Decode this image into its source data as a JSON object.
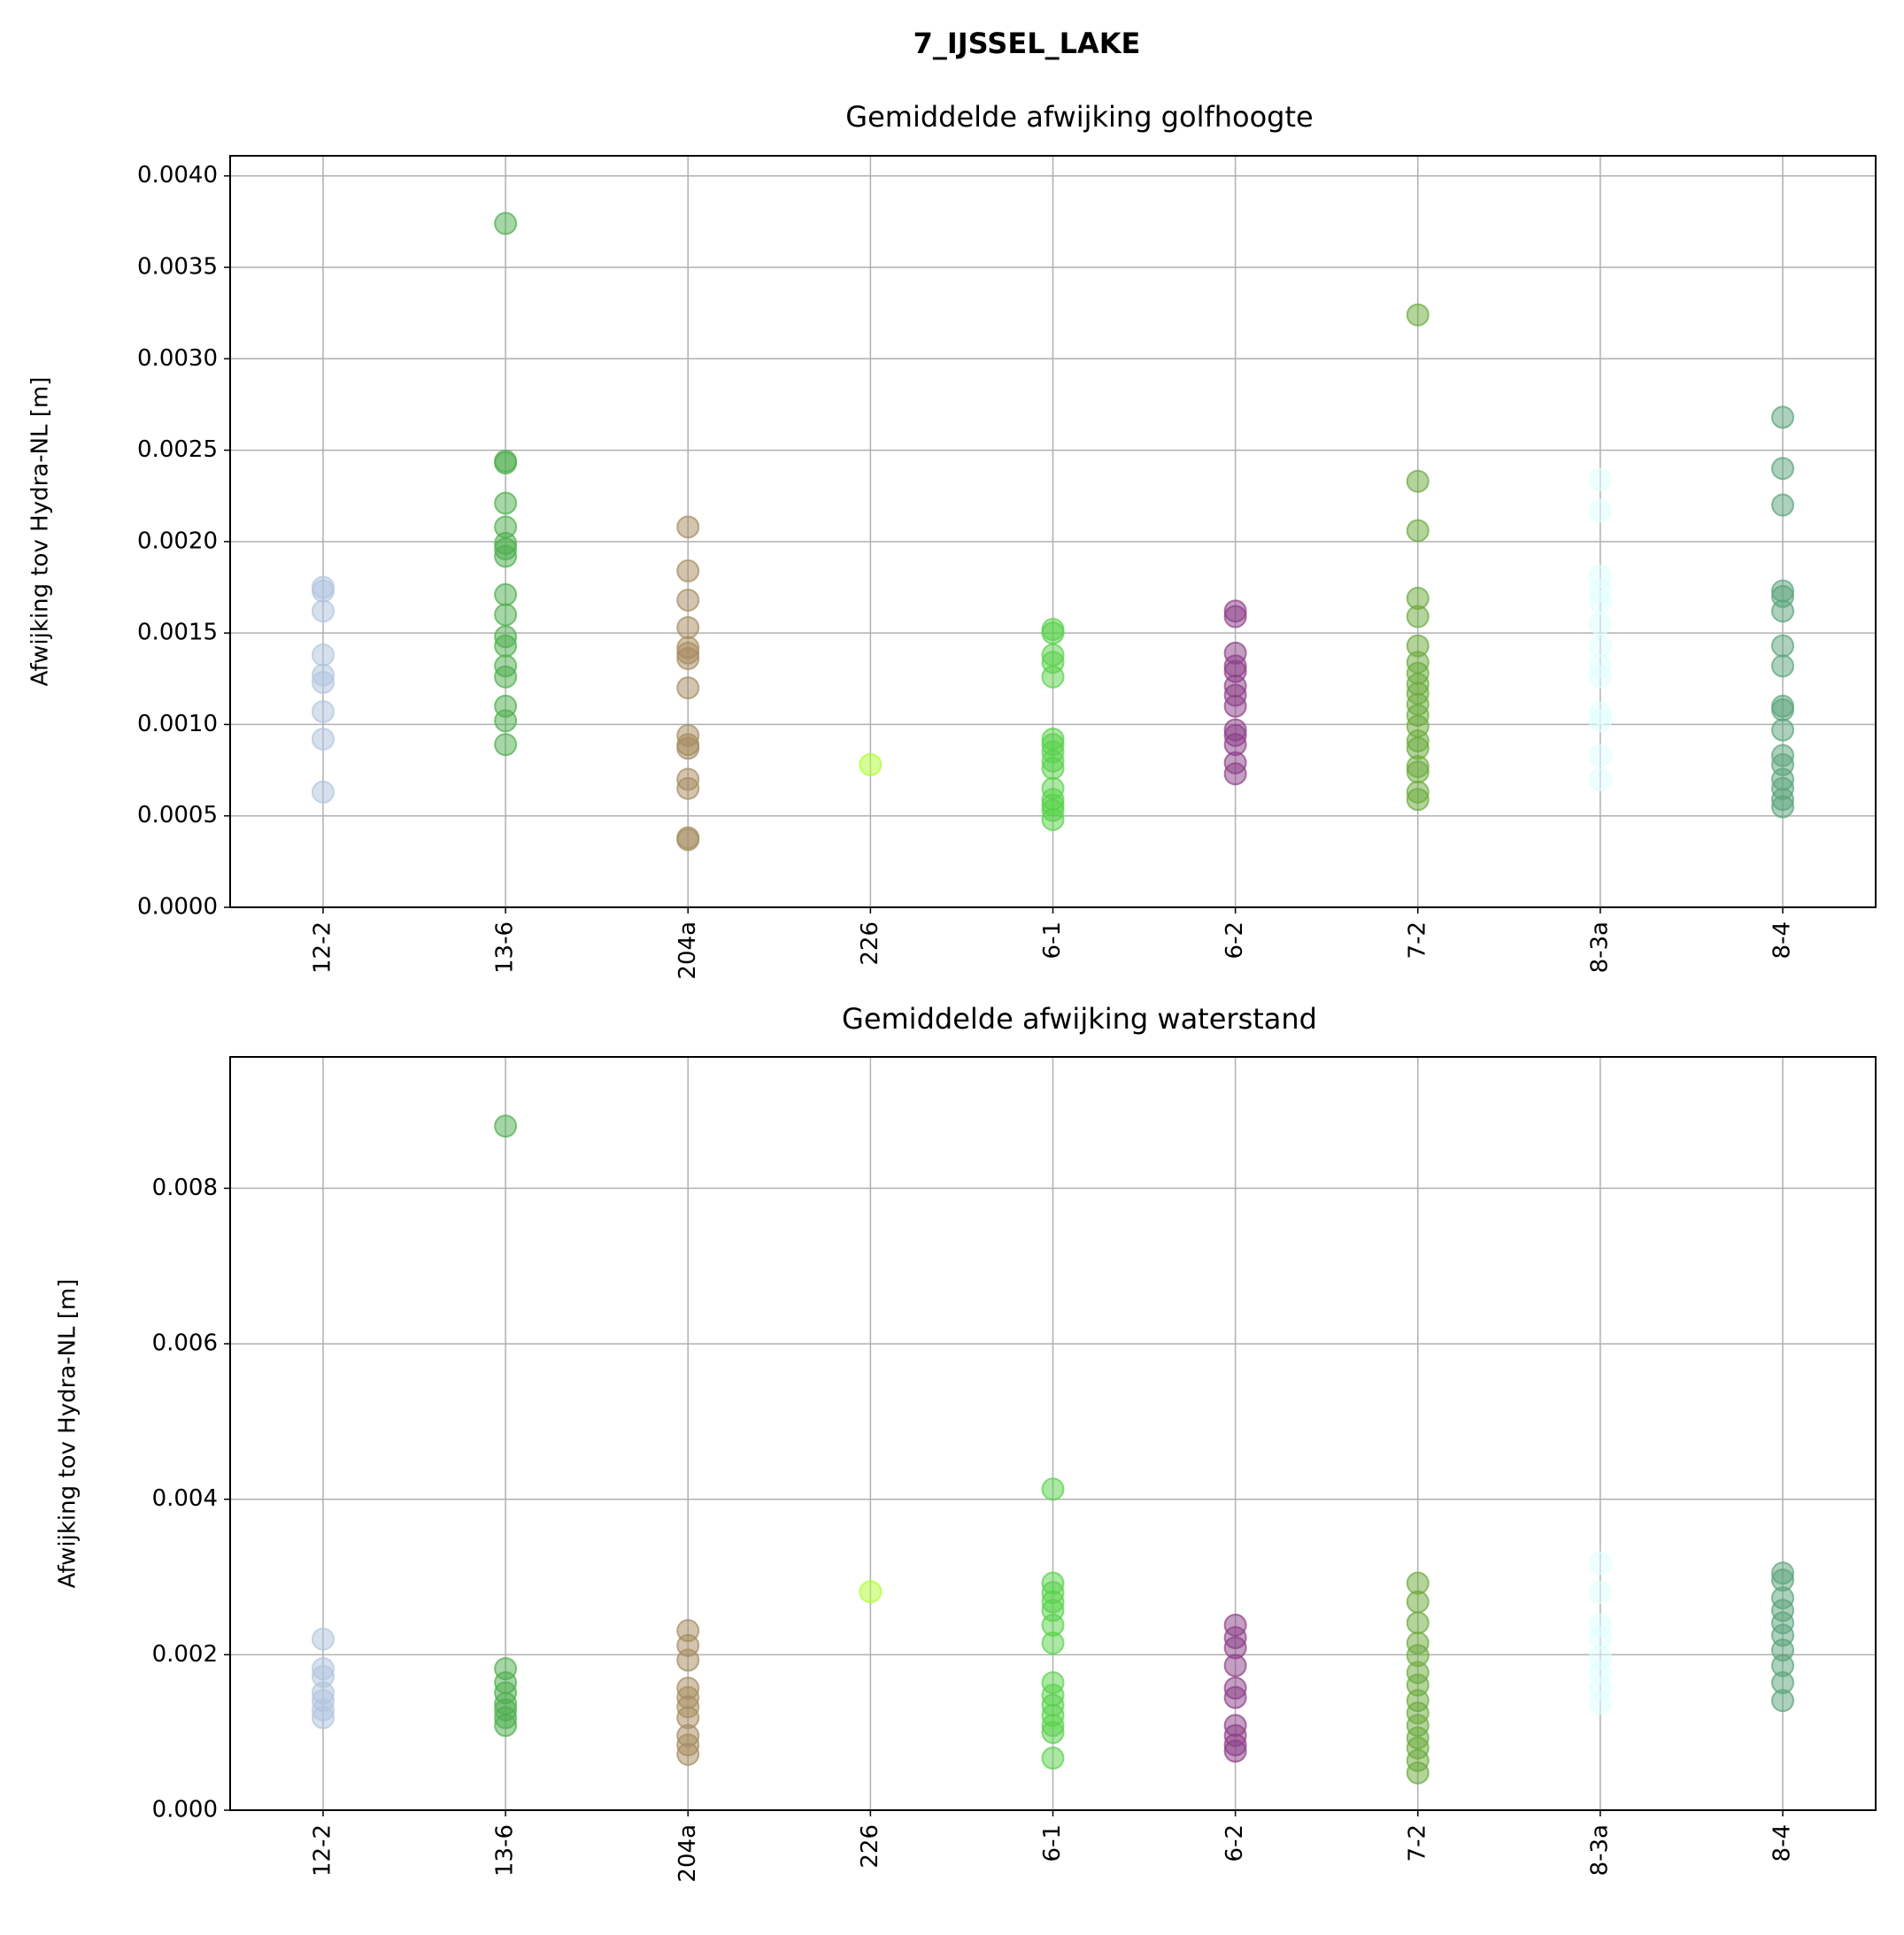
{
  "title": "7_IJSSEL_LAKE",
  "chart_data": [
    {
      "type": "scatter",
      "title": "Gemiddelde afwijking golfhoogte",
      "ylabel": "Afwijking tov Hydra-NL [m]",
      "grid": true,
      "alpha": 0.5,
      "categories": [
        "12-2",
        "13-6",
        "204a",
        "226",
        "6-1",
        "6-2",
        "7-2",
        "8-3a",
        "8-4"
      ],
      "colors": [
        "#b0c4de",
        "#4cae4c",
        "#a68a5e",
        "#adff2f",
        "#55d147",
        "#8b3d88",
        "#6aaa3a",
        "#e0ffff",
        "#5aa37a"
      ],
      "ylim": [
        0,
        0.00411
      ],
      "yticks": [
        {
          "value": 0,
          "label": "0.0000"
        },
        0.0005,
        {
          "value": 0.001,
          "label": "0.0010"
        },
        0.0015,
        {
          "value": 0.002,
          "label": "0.0020"
        },
        0.0025,
        {
          "value": 0.003,
          "label": "0.0030"
        },
        0.0035,
        {
          "value": 0.004,
          "label": "0.0040"
        }
      ],
      "values": [
        [
          0.00175,
          0.00173,
          0.00162,
          0.00138,
          0.00127,
          0.00123,
          0.00107,
          0.00092,
          0.00063
        ],
        [
          0.00374,
          0.00244,
          0.00243,
          0.00221,
          0.00208,
          0.00199,
          0.00196,
          0.00192,
          0.00171,
          0.0016,
          0.00148,
          0.00143,
          0.00132,
          0.00126,
          0.0011,
          0.00102,
          0.00089
        ],
        [
          0.00208,
          0.00184,
          0.00168,
          0.00153,
          0.00142,
          0.00139,
          0.00136,
          0.0012,
          0.00094,
          0.00089,
          0.00087,
          0.0007,
          0.00065,
          0.00038,
          0.00037
        ],
        [
          0.00078
        ],
        [
          0.00152,
          0.0015,
          0.00138,
          0.00134,
          0.00126,
          0.00092,
          0.00089,
          0.00085,
          0.0008,
          0.00076,
          0.00065,
          0.00059,
          0.00056,
          0.00053,
          0.00048
        ],
        [
          0.00162,
          0.00159,
          0.00139,
          0.00132,
          0.00129,
          0.00121,
          0.00116,
          0.0011,
          0.00097,
          0.00094,
          0.00089,
          0.00079,
          0.00073
        ],
        [
          0.00324,
          0.00233,
          0.00206,
          0.00169,
          0.00159,
          0.00143,
          0.00134,
          0.00128,
          0.00122,
          0.00117,
          0.00111,
          0.00105,
          0.00099,
          0.00091,
          0.00087,
          0.00077,
          0.00074,
          0.00063,
          0.00059
        ],
        [
          0.00234,
          0.00217,
          0.00181,
          0.00173,
          0.00167,
          0.00155,
          0.00143,
          0.00132,
          0.00126,
          0.00106,
          0.00102,
          0.00083,
          0.0007
        ],
        [
          0.00268,
          0.0024,
          0.0022,
          0.00173,
          0.0017,
          0.00162,
          0.00143,
          0.00132,
          0.0011,
          0.00108,
          0.00097,
          0.00083,
          0.00078,
          0.0007,
          0.00065,
          0.00059,
          0.00055
        ]
      ]
    },
    {
      "type": "scatter",
      "title": "Gemiddelde afwijking waterstand",
      "ylabel": "Afwijking tov Hydra-NL [m]",
      "grid": true,
      "alpha": 0.5,
      "categories": [
        "12-2",
        "13-6",
        "204a",
        "226",
        "6-1",
        "6-2",
        "7-2",
        "8-3a",
        "8-4"
      ],
      "colors": [
        "#b0c4de",
        "#4cae4c",
        "#a68a5e",
        "#adff2f",
        "#55d147",
        "#8b3d88",
        "#6aaa3a",
        "#e0ffff",
        "#5aa37a"
      ],
      "ylim": [
        0,
        0.00969
      ],
      "yticks": [
        {
          "value": 0,
          "label": "0.000"
        },
        0.002,
        0.004,
        0.006,
        0.008
      ],
      "values": [
        [
          0.0022,
          0.00182,
          0.00172,
          0.00151,
          0.00141,
          0.00129,
          0.00119
        ],
        [
          0.0088,
          0.00182,
          0.00164,
          0.00151,
          0.00137,
          0.00129,
          0.00119,
          0.00109
        ],
        [
          0.00231,
          0.00212,
          0.00193,
          0.00157,
          0.00145,
          0.00133,
          0.00119,
          0.00096,
          0.00084,
          0.00072
        ],
        [
          0.00281
        ],
        [
          0.00413,
          0.00292,
          0.0028,
          0.00268,
          0.00257,
          0.00238,
          0.00215,
          0.00164,
          0.00148,
          0.00135,
          0.00122,
          0.00109,
          0.001,
          0.00067
        ],
        [
          0.00238,
          0.00222,
          0.00209,
          0.00186,
          0.00157,
          0.00145,
          0.00109,
          0.00096,
          0.00084,
          0.00076
        ],
        [
          0.00292,
          0.00268,
          0.00241,
          0.00215,
          0.00199,
          0.00177,
          0.00161,
          0.00141,
          0.00125,
          0.00109,
          0.00093,
          0.0008,
          0.00064,
          0.00048
        ],
        [
          0.00318,
          0.0028,
          0.00238,
          0.00222,
          0.00196,
          0.00177,
          0.00157,
          0.00138
        ],
        [
          0.00305,
          0.00296,
          0.00273,
          0.00257,
          0.00241,
          0.00225,
          0.00206,
          0.00186,
          0.00164,
          0.00141
        ]
      ]
    }
  ]
}
